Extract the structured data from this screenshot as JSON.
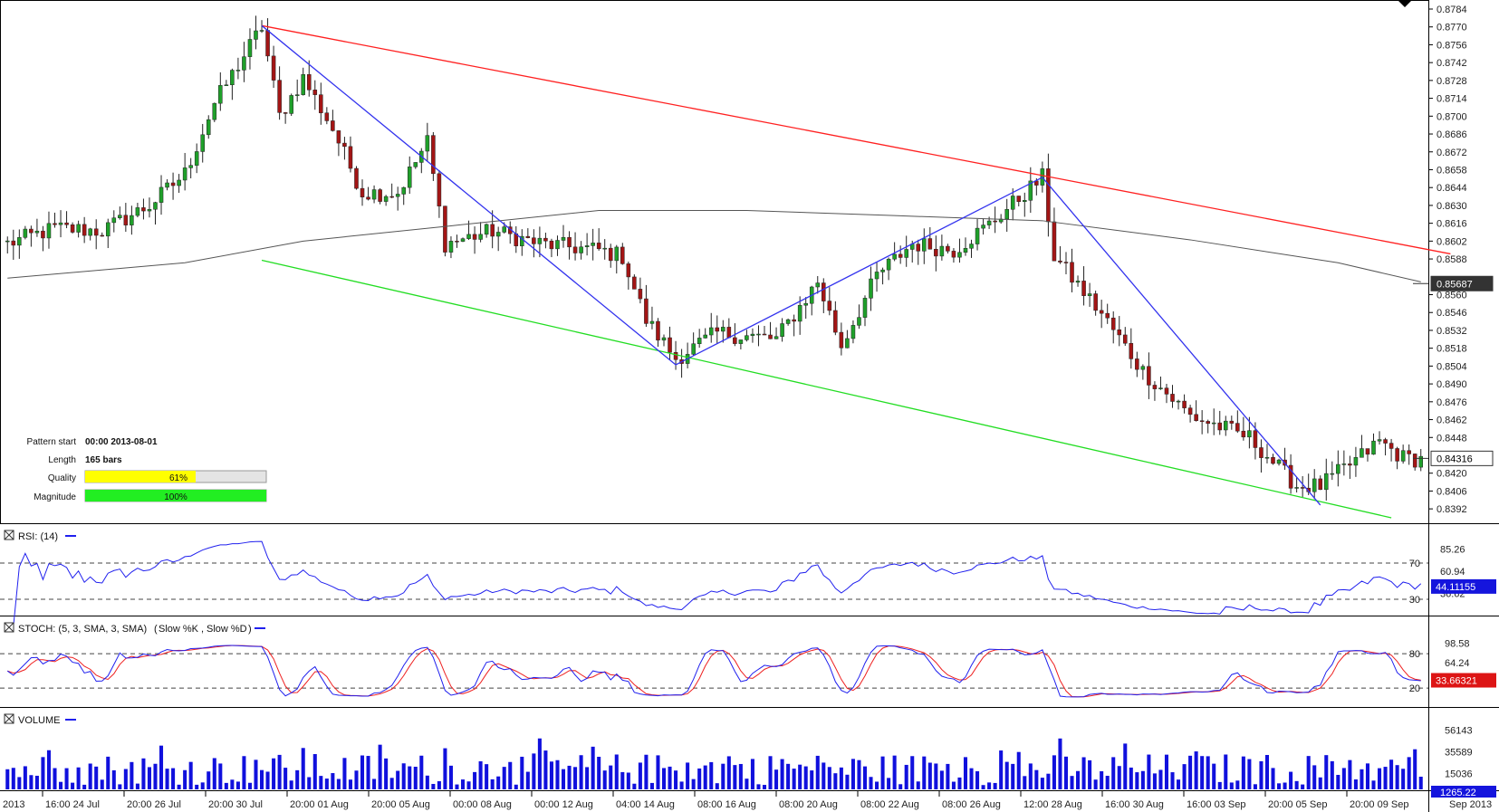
{
  "colors": {
    "up_candle": "#1fa02a",
    "down_candle": "#a31515",
    "resistance_line": "#ff2020",
    "support_line": "#22dd22",
    "zigzag": "#3333ee",
    "moving_average": "#555555",
    "rsi_line": "#2020ee",
    "stoch_k": "#2020ee",
    "stoch_d": "#ee2020",
    "volume_bar": "#1010dd",
    "quality_bar": "#ffff00",
    "magnitude_bar": "#22ee22"
  },
  "pattern_info": {
    "start_label": "Pattern start",
    "start_value": "00:00 2013-08-01",
    "length_label": "Length",
    "length_value": "165 bars",
    "quality_label": "Quality",
    "quality_value": "61%",
    "quality_fraction": 0.61,
    "magnitude_label": "Magnitude",
    "magnitude_value": "100%",
    "magnitude_fraction": 1.0
  },
  "chart_data": [
    {
      "type": "candlestick",
      "title": "",
      "y_ticks": [
        "0.8784",
        "0.8770",
        "0.8756",
        "0.8742",
        "0.8728",
        "0.8714",
        "0.8700",
        "0.8686",
        "0.8672",
        "0.8658",
        "0.8644",
        "0.8630",
        "0.8616",
        "0.8602",
        "0.8588",
        "0.8560",
        "0.8546",
        "0.8532",
        "0.8518",
        "0.8504",
        "0.8490",
        "0.8476",
        "0.8462",
        "0.8448",
        "0.8420",
        "0.8406",
        "0.8392"
      ],
      "ylim": [
        0.8385,
        0.8784
      ],
      "x_tick_labels": [
        "2013",
        "16:00 24 Jul",
        "20:00 26 Jul",
        "20:00 30 Jul",
        "20:00 01 Aug",
        "20:00 05 Aug",
        "00:00 08 Aug",
        "00:00 12 Aug",
        "04:00 14 Aug",
        "08:00 16 Aug",
        "08:00 20 Aug",
        "08:00 22 Aug",
        "08:00 26 Aug",
        "12:00 28 Aug",
        "16:00 30 Aug",
        "16:00 03 Sep",
        "20:00 05 Sep",
        "20:00 09 Sep",
        "Sep 2013"
      ],
      "price_tags": [
        {
          "label": "0.85687",
          "value": 0.85687,
          "style": "dark"
        },
        {
          "label": "0.84316",
          "value": 0.84316,
          "style": "light"
        }
      ],
      "anchor_points": [
        {
          "bar": 0,
          "price": 0.86
        },
        {
          "bar": 8,
          "price": 0.8612
        },
        {
          "bar": 16,
          "price": 0.861
        },
        {
          "bar": 24,
          "price": 0.863
        },
        {
          "bar": 30,
          "price": 0.8655
        },
        {
          "bar": 35,
          "price": 0.871
        },
        {
          "bar": 43,
          "price": 0.877
        },
        {
          "bar": 46,
          "price": 0.87
        },
        {
          "bar": 50,
          "price": 0.873
        },
        {
          "bar": 55,
          "price": 0.869
        },
        {
          "bar": 60,
          "price": 0.864
        },
        {
          "bar": 66,
          "price": 0.864
        },
        {
          "bar": 71,
          "price": 0.868
        },
        {
          "bar": 74,
          "price": 0.86
        },
        {
          "bar": 82,
          "price": 0.861
        },
        {
          "bar": 90,
          "price": 0.86
        },
        {
          "bar": 100,
          "price": 0.8595
        },
        {
          "bar": 104,
          "price": 0.859
        },
        {
          "bar": 108,
          "price": 0.854
        },
        {
          "bar": 113,
          "price": 0.851
        },
        {
          "bar": 120,
          "price": 0.853
        },
        {
          "bar": 130,
          "price": 0.8525
        },
        {
          "bar": 137,
          "price": 0.857
        },
        {
          "bar": 141,
          "price": 0.852
        },
        {
          "bar": 147,
          "price": 0.8575
        },
        {
          "bar": 153,
          "price": 0.86
        },
        {
          "bar": 160,
          "price": 0.8595
        },
        {
          "bar": 166,
          "price": 0.8615
        },
        {
          "bar": 175,
          "price": 0.8652
        },
        {
          "bar": 177,
          "price": 0.859
        },
        {
          "bar": 185,
          "price": 0.8545
        },
        {
          "bar": 192,
          "price": 0.85
        },
        {
          "bar": 200,
          "price": 0.8465
        },
        {
          "bar": 210,
          "price": 0.8448
        },
        {
          "bar": 218,
          "price": 0.841
        },
        {
          "bar": 222,
          "price": 0.841
        },
        {
          "bar": 228,
          "price": 0.843
        },
        {
          "bar": 232,
          "price": 0.8445
        },
        {
          "bar": 236,
          "price": 0.8432
        },
        {
          "bar": 239,
          "price": 0.8431
        }
      ],
      "bars": 240,
      "resistance_line": [
        {
          "bar": 43,
          "price": 0.8771
        },
        {
          "bar": 244,
          "price": 0.8592
        }
      ],
      "support_line": [
        {
          "bar": 43,
          "price": 0.8587
        },
        {
          "bar": 234,
          "price": 0.8385
        }
      ],
      "zigzag": [
        {
          "bar": 43,
          "price": 0.8771
        },
        {
          "bar": 113,
          "price": 0.8505
        },
        {
          "bar": 175,
          "price": 0.8652
        },
        {
          "bar": 222,
          "price": 0.8395
        }
      ],
      "moving_average": [
        {
          "bar": 0,
          "price": 0.8573
        },
        {
          "bar": 30,
          "price": 0.8585
        },
        {
          "bar": 50,
          "price": 0.8602
        },
        {
          "bar": 75,
          "price": 0.8614
        },
        {
          "bar": 100,
          "price": 0.8626
        },
        {
          "bar": 125,
          "price": 0.8626
        },
        {
          "bar": 150,
          "price": 0.8622
        },
        {
          "bar": 175,
          "price": 0.8618
        },
        {
          "bar": 200,
          "price": 0.8603
        },
        {
          "bar": 225,
          "price": 0.8585
        },
        {
          "bar": 239,
          "price": 0.857
        }
      ]
    },
    {
      "type": "line",
      "title": "RSI: (14)",
      "ylim": [
        20,
        92
      ],
      "y_ticks": [
        "85.26",
        "60.94",
        "36.62"
      ],
      "levels": [
        {
          "label": "70",
          "value": 70
        },
        {
          "label": "30",
          "value": 30
        }
      ],
      "last_value_label": "44.11155",
      "series_name": "RSI"
    },
    {
      "type": "line",
      "title": "STOCH: (5, 3, SMA, 3, SMA)",
      "legend": [
        "Slow %K",
        "Slow %D"
      ],
      "ylim": [
        -5,
        115
      ],
      "y_ticks": [
        "98.58",
        "64.24"
      ],
      "levels": [
        {
          "label": "80",
          "value": 80
        },
        {
          "label": "20",
          "value": 20
        }
      ],
      "last_value_label": "33.66321"
    },
    {
      "type": "bar",
      "title": "VOLUME",
      "ylim": [
        0,
        65000
      ],
      "y_ticks": [
        "56143",
        "35589",
        "15036"
      ],
      "last_value_label": "1265.22"
    }
  ]
}
